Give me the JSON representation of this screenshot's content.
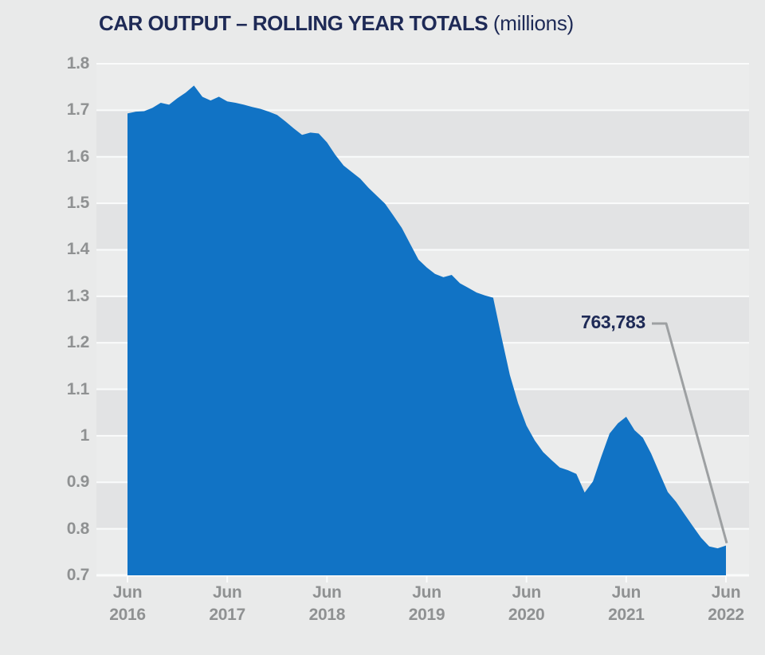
{
  "header": {
    "title": "CAR OUTPUT – ROLLING YEAR TOTALS",
    "subtitle": "(millions)"
  },
  "chart_data": {
    "type": "area",
    "title": "CAR OUTPUT – ROLLING YEAR TOTALS (millions)",
    "unit": "millions",
    "ylim": [
      0.7,
      1.8
    ],
    "grid": "horizontal-only, alternating shaded bands",
    "legend": "none",
    "x": [
      "Jun 2016",
      "Jul 2016",
      "Aug 2016",
      "Sep 2016",
      "Oct 2016",
      "Nov 2016",
      "Dec 2016",
      "Jan 2017",
      "Feb 2017",
      "Mar 2017",
      "Apr 2017",
      "May 2017",
      "Jun 2017",
      "Jul 2017",
      "Aug 2017",
      "Sep 2017",
      "Oct 2017",
      "Nov 2017",
      "Dec 2017",
      "Jan 2018",
      "Feb 2018",
      "Mar 2018",
      "Apr 2018",
      "May 2018",
      "Jun 2018",
      "Jul 2018",
      "Aug 2018",
      "Sep 2018",
      "Oct 2018",
      "Nov 2018",
      "Dec 2018",
      "Jan 2019",
      "Feb 2019",
      "Mar 2019",
      "Apr 2019",
      "May 2019",
      "Jun 2019",
      "Jul 2019",
      "Aug 2019",
      "Sep 2019",
      "Oct 2019",
      "Nov 2019",
      "Dec 2019",
      "Jan 2020",
      "Feb 2020",
      "Mar 2020",
      "Apr 2020",
      "May 2020",
      "Jun 2020",
      "Jul 2020",
      "Aug 2020",
      "Sep 2020",
      "Oct 2020",
      "Nov 2020",
      "Dec 2020",
      "Jan 2021",
      "Feb 2021",
      "Mar 2021",
      "Apr 2021",
      "May 2021",
      "Jun 2021",
      "Jul 2021",
      "Aug 2021",
      "Sep 2021",
      "Oct 2021",
      "Nov 2021",
      "Dec 2021",
      "Jan 2022",
      "Feb 2022",
      "Mar 2022",
      "Apr 2022",
      "May 2022",
      "Jun 2022"
    ],
    "values": [
      1.693,
      1.697,
      1.698,
      1.705,
      1.716,
      1.712,
      1.726,
      1.738,
      1.753,
      1.729,
      1.721,
      1.729,
      1.719,
      1.716,
      1.712,
      1.707,
      1.703,
      1.697,
      1.69,
      1.676,
      1.661,
      1.647,
      1.652,
      1.65,
      1.631,
      1.604,
      1.581,
      1.567,
      1.553,
      1.533,
      1.516,
      1.499,
      1.473,
      1.447,
      1.413,
      1.379,
      1.362,
      1.348,
      1.341,
      1.346,
      1.328,
      1.318,
      1.308,
      1.302,
      1.297,
      1.212,
      1.131,
      1.07,
      1.022,
      0.99,
      0.965,
      0.948,
      0.932,
      0.926,
      0.918,
      0.878,
      0.902,
      0.955,
      1.005,
      1.027,
      1.041,
      1.012,
      0.996,
      0.962,
      0.92,
      0.879,
      0.858,
      0.832,
      0.806,
      0.781,
      0.762,
      0.758,
      0.764
    ],
    "y_ticks": [
      1.8,
      1.7,
      1.6,
      1.5,
      1.4,
      1.3,
      1.2,
      1.1,
      1.0,
      0.9,
      0.8,
      0.7
    ],
    "y_tick_labels": [
      "1.8",
      "1.7",
      "1.6",
      "1.5",
      "1.4",
      "1.3",
      "1.2",
      "1.1",
      "1",
      "0.9",
      "0.8",
      "0.7"
    ],
    "x_ticks": [
      {
        "month": "Jun",
        "year": "2016"
      },
      {
        "month": "Jun",
        "year": "2017"
      },
      {
        "month": "Jun",
        "year": "2018"
      },
      {
        "month": "Jun",
        "year": "2019"
      },
      {
        "month": "Jun",
        "year": "2020"
      },
      {
        "month": "Jun",
        "year": "2021"
      },
      {
        "month": "Jun",
        "year": "2022"
      }
    ],
    "annotation": {
      "label": "763,783",
      "points_to_x": "Jun 2022",
      "value_millions": 0.764
    },
    "colors": {
      "area": "#1173c5",
      "band_dark": "#e2e3e4",
      "band_light": "#ebecec",
      "gridline": "#fafbfb",
      "title": "#1e2a56",
      "axis_label": "#8f9192",
      "callout": "#9da0a2",
      "page_background": "#e9eaea"
    }
  }
}
